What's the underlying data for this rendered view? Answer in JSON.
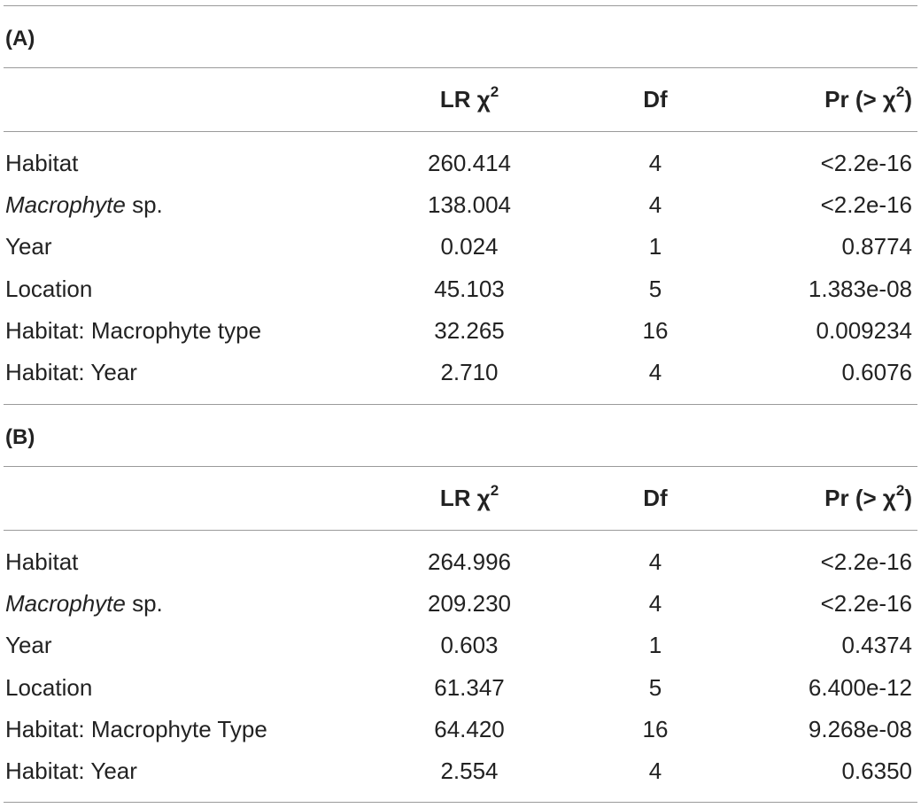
{
  "tables": [
    {
      "label": "(A)",
      "header": {
        "lr_base": "LR χ",
        "lr_sup": "2",
        "df": "Df",
        "pr_open": "Pr (> χ",
        "pr_sup": "2",
        "pr_close": ")"
      },
      "rows": [
        {
          "label": "Habitat",
          "label_italic": "",
          "lr": "260.414",
          "df": "4",
          "pr": "<2.2e-16"
        },
        {
          "label": " sp.",
          "label_italic": "Macrophyte",
          "lr": "138.004",
          "df": "4",
          "pr": "<2.2e-16"
        },
        {
          "label": "Year",
          "label_italic": "",
          "lr": "0.024",
          "df": "1",
          "pr": "0.8774"
        },
        {
          "label": "Location",
          "label_italic": "",
          "lr": "45.103",
          "df": "5",
          "pr": "1.383e-08"
        },
        {
          "label": "Habitat: Macrophyte type",
          "label_italic": "",
          "lr": "32.265",
          "df": "16",
          "pr": "0.009234"
        },
        {
          "label": "Habitat: Year",
          "label_italic": "",
          "lr": "2.710",
          "df": "4",
          "pr": "0.6076"
        }
      ]
    },
    {
      "label": "(B)",
      "header": {
        "lr_base": "LR χ",
        "lr_sup": "2",
        "df": "Df",
        "pr_open": "Pr (> χ",
        "pr_sup": "2",
        "pr_close": ")"
      },
      "rows": [
        {
          "label": "Habitat",
          "label_italic": "",
          "lr": "264.996",
          "df": "4",
          "pr": "<2.2e-16"
        },
        {
          "label": " sp.",
          "label_italic": "Macrophyte",
          "lr": "209.230",
          "df": "4",
          "pr": "<2.2e-16"
        },
        {
          "label": "Year",
          "label_italic": "",
          "lr": "0.603",
          "df": "1",
          "pr": "0.4374"
        },
        {
          "label": "Location",
          "label_italic": "",
          "lr": "61.347",
          "df": "5",
          "pr": "6.400e-12"
        },
        {
          "label": "Habitat: Macrophyte Type",
          "label_italic": "",
          "lr": "64.420",
          "df": "16",
          "pr": "9.268e-08"
        },
        {
          "label": "Habitat: Year",
          "label_italic": "",
          "lr": "2.554",
          "df": "4",
          "pr": "0.6350"
        }
      ]
    }
  ]
}
